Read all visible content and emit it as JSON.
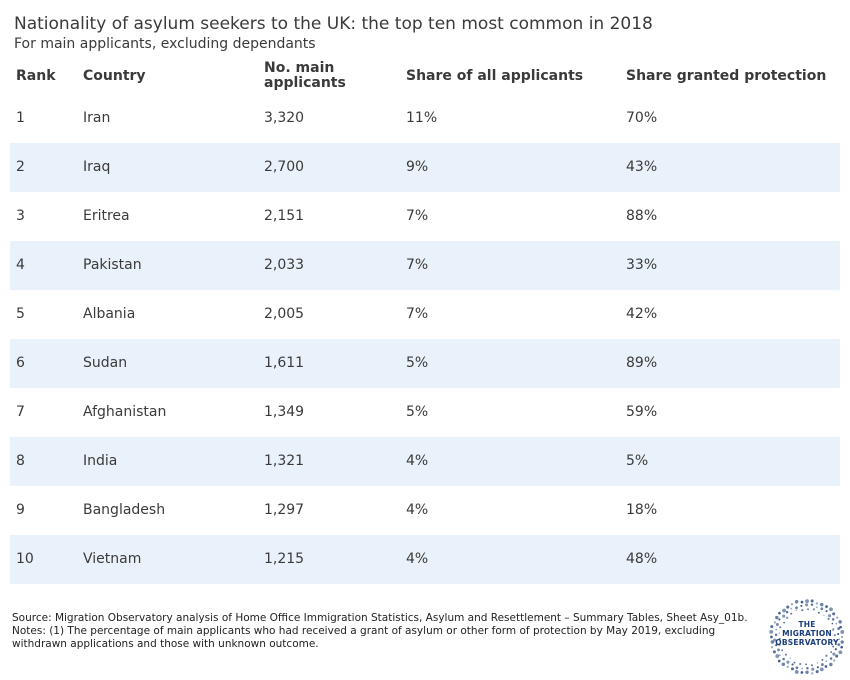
{
  "title": "Nationality of asylum seekers to the UK: the top ten most common in 2018",
  "subtitle": "For main applicants, excluding dependants",
  "chart_data": {
    "type": "table",
    "columns": [
      "Rank",
      "Country",
      "No. main applicants",
      "Share of all applicants",
      "Share granted protection"
    ],
    "rows": [
      {
        "rank": "1",
        "country": "Iran",
        "applicants": "3,320",
        "share": "11%",
        "granted": "70%"
      },
      {
        "rank": "2",
        "country": "Iraq",
        "applicants": "2,700",
        "share": "9%",
        "granted": "43%"
      },
      {
        "rank": "3",
        "country": "Eritrea",
        "applicants": "2,151",
        "share": "7%",
        "granted": "88%"
      },
      {
        "rank": "4",
        "country": "Pakistan",
        "applicants": "2,033",
        "share": "7%",
        "granted": "33%"
      },
      {
        "rank": "5",
        "country": "Albania",
        "applicants": "2,005",
        "share": "7%",
        "granted": "42%"
      },
      {
        "rank": "6",
        "country": "Sudan",
        "applicants": "1,611",
        "share": "5%",
        "granted": "89%"
      },
      {
        "rank": "7",
        "country": "Afghanistan",
        "applicants": "1,349",
        "share": "5%",
        "granted": "59%"
      },
      {
        "rank": "8",
        "country": "India",
        "applicants": "1,321",
        "share": "4%",
        "granted": "5%"
      },
      {
        "rank": "9",
        "country": "Bangladesh",
        "applicants": "1,297",
        "share": "4%",
        "granted": "18%"
      },
      {
        "rank": "10",
        "country": "Vietnam",
        "applicants": "1,215",
        "share": "4%",
        "granted": "48%"
      }
    ],
    "stripe_color": "#e9f2fa"
  },
  "footnote": {
    "source": "Source: Migration Observatory analysis of Home Office Immigration Statistics, Asylum and Resettlement – Summary Tables, Sheet Asy_01b.",
    "notes": "Notes: (1) The percentage of main applicants who had received a grant of asylum or other form of protection by May 2019, excluding withdrawn applications and those with unknown outcome."
  },
  "logo": {
    "line1": "THE",
    "line2": "MIGRATION",
    "line3": "OBSERVATORY",
    "color": "#1a3d7a"
  }
}
